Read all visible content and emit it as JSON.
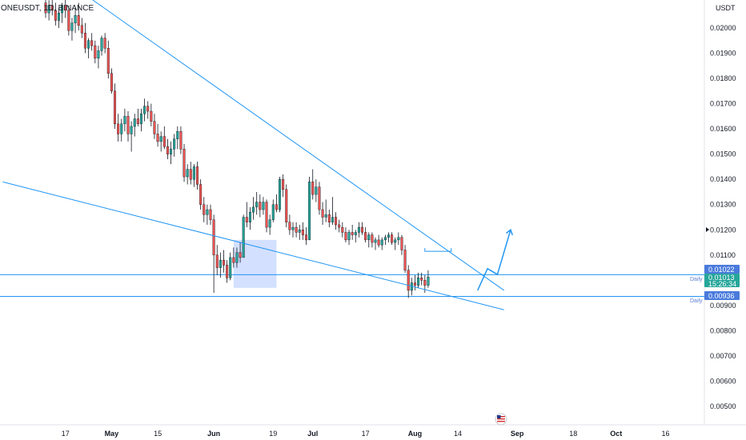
{
  "header": {
    "title": "ONEUSDT, 1D, BINANCE",
    "currency": "USDT"
  },
  "colors": {
    "up": "#26a69a",
    "down": "#ef5350",
    "wick": "#131722",
    "line": "#2196f3",
    "badge_blue": "#2962ff",
    "badge_price": "#26a69a",
    "box_fill": "#2962ff"
  },
  "badges": {
    "upper_level": "0.01022",
    "price": "0.01013",
    "countdown": "15:26:34",
    "lower_level": "0.00936",
    "upper_label": "Daily",
    "lower_label": "Daily"
  },
  "chart_data": {
    "type": "candlestick",
    "symbol": "ONEUSDT",
    "interval": "1D",
    "exchange": "BINANCE",
    "ylim": [
      0.0045,
      0.0209
    ],
    "y_ticks": [
      "0.02000",
      "0.01900",
      "0.01800",
      "0.01700",
      "0.01600",
      "0.01500",
      "0.01400",
      "0.01300",
      "0.01200",
      "0.01100",
      "0.00900",
      "0.00800",
      "0.00700",
      "0.00600",
      "0.00500"
    ],
    "y_tick_values": [
      0.02,
      0.019,
      0.018,
      0.017,
      0.016,
      0.015,
      0.014,
      0.013,
      0.012,
      0.011,
      0.009,
      0.008,
      0.007,
      0.006,
      0.005
    ],
    "x_start_date": "2023-04-11",
    "x_ticks": [
      {
        "label": "17",
        "date": "2023-04-17",
        "bold": false
      },
      {
        "label": "May",
        "date": "2023-05-01",
        "bold": true
      },
      {
        "label": "15",
        "date": "2023-05-15",
        "bold": false
      },
      {
        "label": "Jun",
        "date": "2023-06-01",
        "bold": true
      },
      {
        "label": "19",
        "date": "2023-06-19",
        "bold": false
      },
      {
        "label": "Jul",
        "date": "2023-07-01",
        "bold": true
      },
      {
        "label": "17",
        "date": "2023-07-17",
        "bold": false
      },
      {
        "label": "Aug",
        "date": "2023-08-01",
        "bold": true
      },
      {
        "label": "14",
        "date": "2023-08-14",
        "bold": false
      },
      {
        "label": "Sep",
        "date": "2023-09-01",
        "bold": true
      },
      {
        "label": "18",
        "date": "2023-09-18",
        "bold": false
      },
      {
        "label": "Oct",
        "date": "2023-10-01",
        "bold": true
      },
      {
        "label": "16",
        "date": "2023-10-16",
        "bold": false
      }
    ],
    "candles": [
      [
        0.021,
        0.0212,
        0.0204,
        0.0206
      ],
      [
        0.0206,
        0.0211,
        0.0203,
        0.0209
      ],
      [
        0.0209,
        0.0213,
        0.0205,
        0.0207
      ],
      [
        0.0207,
        0.021,
        0.0201,
        0.0203
      ],
      [
        0.0203,
        0.0208,
        0.02,
        0.0206
      ],
      [
        0.0206,
        0.021,
        0.0202,
        0.0209
      ],
      [
        0.0209,
        0.0212,
        0.0204,
        0.0207
      ],
      [
        0.0207,
        0.0209,
        0.0197,
        0.0199
      ],
      [
        0.0199,
        0.0204,
        0.0195,
        0.0202
      ],
      [
        0.0202,
        0.0208,
        0.0198,
        0.0205
      ],
      [
        0.0205,
        0.021,
        0.0199,
        0.0201
      ],
      [
        0.0201,
        0.0204,
        0.0196,
        0.0198
      ],
      [
        0.0198,
        0.0202,
        0.019,
        0.0192
      ],
      [
        0.0192,
        0.0196,
        0.0188,
        0.0195
      ],
      [
        0.0195,
        0.0198,
        0.0191,
        0.0193
      ],
      [
        0.0193,
        0.0195,
        0.0186,
        0.0188
      ],
      [
        0.0188,
        0.0193,
        0.0184,
        0.0191
      ],
      [
        0.0191,
        0.0197,
        0.0189,
        0.0196
      ],
      [
        0.0196,
        0.0198,
        0.019,
        0.0192
      ],
      [
        0.0192,
        0.0195,
        0.018,
        0.0182
      ],
      [
        0.0182,
        0.0184,
        0.0174,
        0.0175
      ],
      [
        0.0175,
        0.0178,
        0.016,
        0.0162
      ],
      [
        0.0162,
        0.0166,
        0.0155,
        0.0158
      ],
      [
        0.0158,
        0.0164,
        0.0155,
        0.0162
      ],
      [
        0.0162,
        0.0168,
        0.0159,
        0.0165
      ],
      [
        0.0165,
        0.0167,
        0.0155,
        0.0158
      ],
      [
        0.0158,
        0.0163,
        0.0151,
        0.0161
      ],
      [
        0.0161,
        0.0166,
        0.0157,
        0.0164
      ],
      [
        0.0164,
        0.0168,
        0.0161,
        0.0162
      ],
      [
        0.0162,
        0.0168,
        0.0159,
        0.0166
      ],
      [
        0.0166,
        0.0172,
        0.0163,
        0.0169
      ],
      [
        0.0169,
        0.0171,
        0.0164,
        0.0167
      ],
      [
        0.0167,
        0.017,
        0.0161,
        0.0163
      ],
      [
        0.0163,
        0.0166,
        0.0156,
        0.0158
      ],
      [
        0.0158,
        0.0162,
        0.0153,
        0.0155
      ],
      [
        0.0155,
        0.0159,
        0.0151,
        0.0157
      ],
      [
        0.0157,
        0.0161,
        0.0152,
        0.0153
      ],
      [
        0.0153,
        0.0156,
        0.0148,
        0.015
      ],
      [
        0.015,
        0.0155,
        0.0146,
        0.0152
      ],
      [
        0.0152,
        0.0158,
        0.0149,
        0.0156
      ],
      [
        0.0156,
        0.0161,
        0.0152,
        0.0159
      ],
      [
        0.0159,
        0.0161,
        0.015,
        0.0152
      ],
      [
        0.0152,
        0.0154,
        0.0139,
        0.0141
      ],
      [
        0.0141,
        0.0146,
        0.0138,
        0.0144
      ],
      [
        0.0144,
        0.0147,
        0.0138,
        0.014
      ],
      [
        0.014,
        0.0146,
        0.0137,
        0.0145
      ],
      [
        0.0145,
        0.0147,
        0.0136,
        0.0138
      ],
      [
        0.0138,
        0.014,
        0.0128,
        0.013
      ],
      [
        0.013,
        0.0133,
        0.0123,
        0.0126
      ],
      [
        0.0126,
        0.013,
        0.0122,
        0.0128
      ],
      [
        0.0128,
        0.013,
        0.0122,
        0.0124
      ],
      [
        0.0124,
        0.0126,
        0.0095,
        0.011
      ],
      [
        0.011,
        0.0114,
        0.0102,
        0.0105
      ],
      [
        0.0105,
        0.0111,
        0.0101,
        0.0108
      ],
      [
        0.0108,
        0.0112,
        0.0103,
        0.0106
      ],
      [
        0.0106,
        0.0108,
        0.0099,
        0.0101
      ],
      [
        0.0101,
        0.0111,
        0.01,
        0.0109
      ],
      [
        0.0109,
        0.0113,
        0.0105,
        0.0107
      ],
      [
        0.0107,
        0.0113,
        0.0105,
        0.0111
      ],
      [
        0.0111,
        0.0115,
        0.0107,
        0.0109
      ],
      [
        0.0109,
        0.0126,
        0.0109,
        0.0125
      ],
      [
        0.0125,
        0.0131,
        0.0121,
        0.0123
      ],
      [
        0.0123,
        0.0129,
        0.012,
        0.0127
      ],
      [
        0.0127,
        0.0133,
        0.0124,
        0.0129
      ],
      [
        0.0129,
        0.0135,
        0.0126,
        0.0131
      ],
      [
        0.0131,
        0.0134,
        0.0125,
        0.0128
      ],
      [
        0.0128,
        0.0133,
        0.0126,
        0.0131
      ],
      [
        0.0131,
        0.0132,
        0.0119,
        0.0121
      ],
      [
        0.0121,
        0.0126,
        0.0118,
        0.0124
      ],
      [
        0.0124,
        0.0132,
        0.0123,
        0.013
      ],
      [
        0.013,
        0.0134,
        0.0127,
        0.0128
      ],
      [
        0.0128,
        0.0141,
        0.0127,
        0.014
      ],
      [
        0.014,
        0.0142,
        0.0133,
        0.0136
      ],
      [
        0.0136,
        0.0138,
        0.0121,
        0.0123
      ],
      [
        0.0123,
        0.0126,
        0.0118,
        0.012
      ],
      [
        0.012,
        0.0123,
        0.0117,
        0.0121
      ],
      [
        0.0121,
        0.0123,
        0.0117,
        0.0119
      ],
      [
        0.0119,
        0.0122,
        0.0116,
        0.012
      ],
      [
        0.012,
        0.0123,
        0.0116,
        0.0118
      ],
      [
        0.0118,
        0.0121,
        0.0114,
        0.0116
      ],
      [
        0.0116,
        0.0141,
        0.0116,
        0.0139
      ],
      [
        0.0139,
        0.0144,
        0.0132,
        0.0134
      ],
      [
        0.0134,
        0.014,
        0.0131,
        0.0137
      ],
      [
        0.0137,
        0.0139,
        0.0126,
        0.0128
      ],
      [
        0.0128,
        0.0131,
        0.0122,
        0.0125
      ],
      [
        0.0125,
        0.0132,
        0.0123,
        0.0126
      ],
      [
        0.0126,
        0.0128,
        0.0121,
        0.0123
      ],
      [
        0.0123,
        0.0133,
        0.0122,
        0.0125
      ],
      [
        0.0125,
        0.0127,
        0.012,
        0.0122
      ],
      [
        0.0122,
        0.0124,
        0.0119,
        0.0121
      ],
      [
        0.0121,
        0.0123,
        0.0117,
        0.0119
      ],
      [
        0.0119,
        0.0121,
        0.0115,
        0.0116
      ],
      [
        0.0116,
        0.012,
        0.0114,
        0.0119
      ],
      [
        0.0119,
        0.0122,
        0.0116,
        0.0118
      ],
      [
        0.0118,
        0.012,
        0.0115,
        0.0119
      ],
      [
        0.0119,
        0.0123,
        0.0117,
        0.0121
      ],
      [
        0.0121,
        0.0123,
        0.0118,
        0.0119
      ],
      [
        0.0119,
        0.0121,
        0.0115,
        0.0116
      ],
      [
        0.0116,
        0.0119,
        0.0113,
        0.0118
      ],
      [
        0.0118,
        0.0119,
        0.0113,
        0.0115
      ],
      [
        0.0115,
        0.0117,
        0.0112,
        0.0116
      ],
      [
        0.0116,
        0.0118,
        0.0113,
        0.0114
      ],
      [
        0.0114,
        0.0117,
        0.0112,
        0.0116
      ],
      [
        0.0116,
        0.0118,
        0.0114,
        0.0117
      ],
      [
        0.0117,
        0.0119,
        0.0115,
        0.0118
      ],
      [
        0.0118,
        0.0119,
        0.0114,
        0.0115
      ],
      [
        0.0115,
        0.0117,
        0.0112,
        0.0116
      ],
      [
        0.0116,
        0.0119,
        0.0114,
        0.0117
      ],
      [
        0.0117,
        0.0118,
        0.011,
        0.0112
      ],
      [
        0.0112,
        0.0114,
        0.0103,
        0.0104
      ],
      [
        0.0104,
        0.0106,
        0.0093,
        0.0096
      ],
      [
        0.0096,
        0.0101,
        0.0094,
        0.0099
      ],
      [
        0.0099,
        0.0102,
        0.0096,
        0.0098
      ],
      [
        0.0098,
        0.0103,
        0.0097,
        0.0101
      ],
      [
        0.0101,
        0.0103,
        0.0098,
        0.01
      ],
      [
        0.01,
        0.0102,
        0.0095,
        0.0098
      ],
      [
        0.0098,
        0.0104,
        0.0097,
        0.01013
      ]
    ],
    "trendlines": [
      {
        "name": "upper-trendline",
        "points": [
          [
            "2023-04-20",
            0.0216
          ],
          [
            "2023-08-28",
            0.0096
          ]
        ]
      },
      {
        "name": "lower-trendline",
        "points": [
          [
            "2023-03-29",
            0.0139
          ],
          [
            "2023-08-28",
            0.00883
          ]
        ]
      }
    ],
    "horizontal_lines": [
      0.01022,
      0.00936
    ],
    "highlight_box": {
      "date_from": "2023-06-07",
      "date_to": "2023-06-20",
      "price_from": 0.0116,
      "price_to": 0.0097
    },
    "bracket": {
      "date_from": "2023-08-04",
      "date_to": "2023-08-12",
      "price": 0.01115
    },
    "projection_path": [
      [
        "2023-08-20",
        0.0096
      ],
      [
        "2023-08-23",
        0.01046
      ],
      [
        "2023-08-26",
        0.01023
      ],
      [
        "2023-08-30",
        0.012
      ]
    ]
  }
}
